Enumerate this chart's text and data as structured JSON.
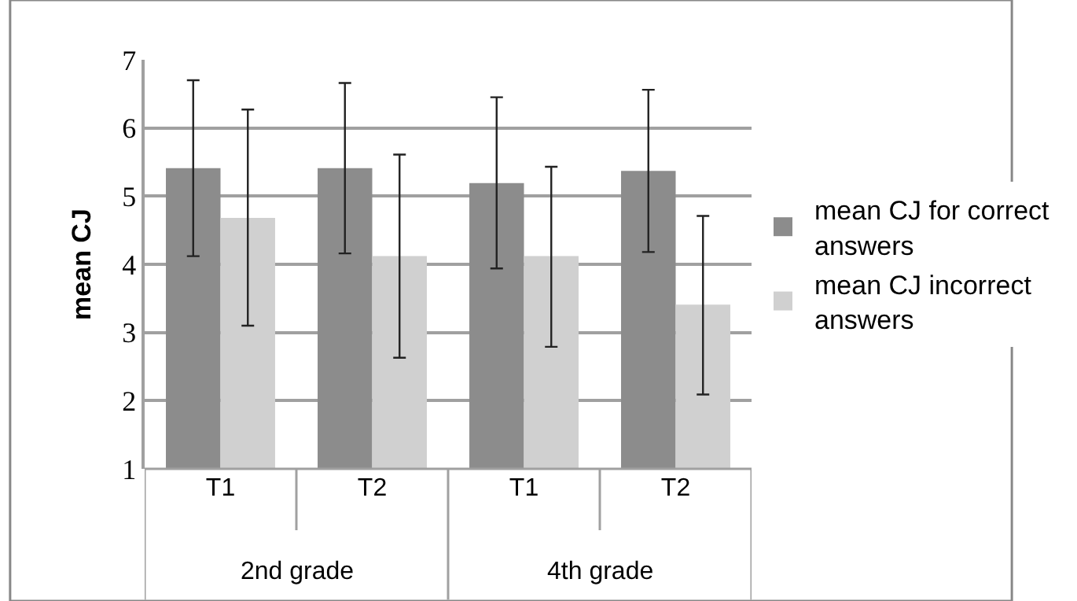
{
  "chart_data": {
    "type": "bar",
    "categories": [
      "T1",
      "T2",
      "T1",
      "T2"
    ],
    "ylabel": "mean CJ",
    "ylim": [
      1,
      7
    ],
    "yticks": [
      1,
      2,
      3,
      4,
      5,
      6,
      7
    ],
    "grid": "y",
    "legend": "right",
    "annotations": [
      "2nd grade",
      "4th grade"
    ],
    "series": [
      {
        "name": "mean CJ for correct answers",
        "color": "#8c8c8c",
        "values": [
          5.41,
          5.41,
          5.19,
          5.37
        ],
        "errors": [
          [
            4.12,
            6.7
          ],
          [
            4.16,
            6.66
          ],
          [
            3.94,
            6.45
          ],
          [
            4.18,
            6.56
          ]
        ]
      },
      {
        "name": "mean CJ incorrect answers",
        "color": "#d0d0d0",
        "values": [
          4.68,
          4.12,
          4.12,
          3.41
        ],
        "errors": [
          [
            3.1,
            6.27
          ],
          [
            2.63,
            5.61
          ],
          [
            2.79,
            5.43
          ],
          [
            2.09,
            4.71
          ]
        ]
      }
    ]
  }
}
